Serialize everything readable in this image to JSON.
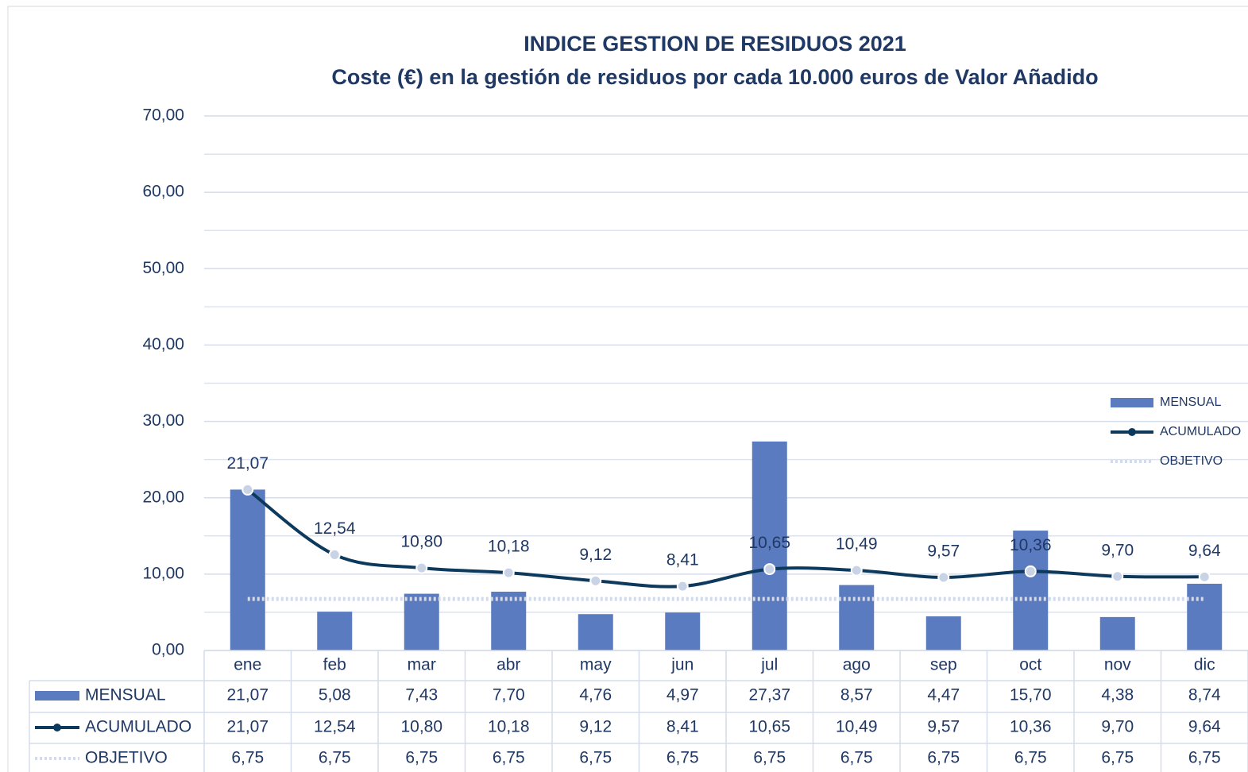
{
  "chart_data": {
    "type": "bar_line_table",
    "title": "INDICE GESTION DE RESIDUOS 2021",
    "subtitle": "Coste (€) en la gestión de residuos por cada 10.000 euros de Valor Añadido",
    "categories": [
      "ene",
      "feb",
      "mar",
      "abr",
      "may",
      "jun",
      "jul",
      "ago",
      "sep",
      "oct",
      "nov",
      "dic"
    ],
    "series": [
      {
        "name": "MENSUAL",
        "type": "bar",
        "color": "#5a7bc0",
        "values": [
          21.07,
          5.08,
          7.43,
          7.7,
          4.76,
          4.97,
          27.37,
          8.57,
          4.47,
          15.7,
          4.38,
          8.74
        ],
        "value_labels": [
          "21,07",
          "5,08",
          "7,43",
          "7,70",
          "4,76",
          "4,97",
          "27,37",
          "8,57",
          "4,47",
          "15,70",
          "4,38",
          "8,74"
        ]
      },
      {
        "name": "ACUMULADO",
        "type": "line",
        "color": "#0d3a5c",
        "values": [
          21.07,
          12.54,
          10.8,
          10.18,
          9.12,
          8.41,
          10.65,
          10.49,
          9.57,
          10.36,
          9.7,
          9.64
        ],
        "value_labels": [
          "21,07",
          "12,54",
          "10,80",
          "10,18",
          "9,12",
          "8,41",
          "10,65",
          "10,49",
          "9,57",
          "10,36",
          "9,70",
          "9,64"
        ]
      },
      {
        "name": "OBJETIVO",
        "type": "dotted_line",
        "color": "#d3dbea",
        "values": [
          6.75,
          6.75,
          6.75,
          6.75,
          6.75,
          6.75,
          6.75,
          6.75,
          6.75,
          6.75,
          6.75,
          6.75
        ],
        "value_labels": [
          "6,75",
          "6,75",
          "6,75",
          "6,75",
          "6,75",
          "6,75",
          "6,75",
          "6,75",
          "6,75",
          "6,75",
          "6,75",
          "6,75"
        ]
      }
    ],
    "ylim": [
      0,
      70
    ],
    "yticks": [
      {
        "value": 0,
        "label": "0,00"
      },
      {
        "value": 10,
        "label": "10,00"
      },
      {
        "value": 20,
        "label": "20,00"
      },
      {
        "value": 30,
        "label": "30,00"
      },
      {
        "value": 40,
        "label": "40,00"
      },
      {
        "value": 50,
        "label": "50,00"
      },
      {
        "value": 60,
        "label": "60,00"
      },
      {
        "value": 70,
        "label": "70,00"
      }
    ],
    "yminorticks": [
      5,
      15,
      25,
      35,
      45,
      55,
      65
    ],
    "grid": true,
    "legend": "right",
    "data_table": true
  }
}
